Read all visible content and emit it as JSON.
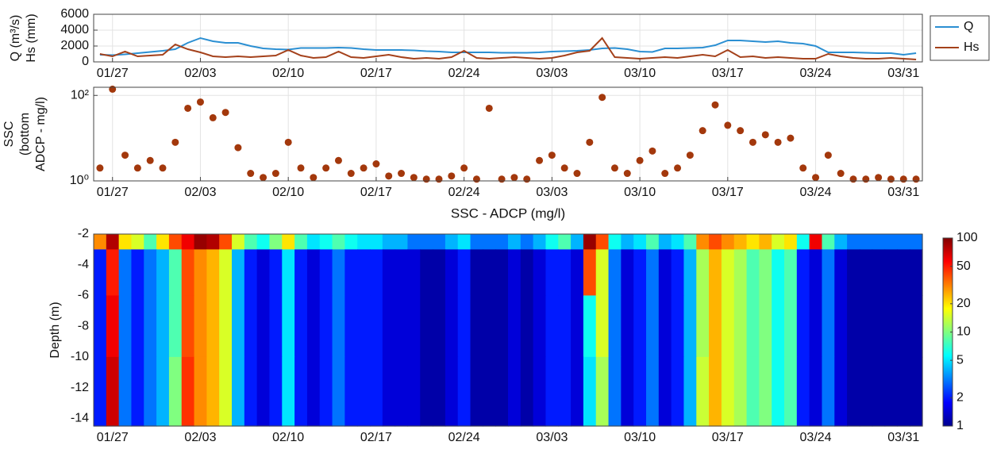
{
  "chart_data": [
    {
      "type": "line",
      "ylabel": [
        "Q (m³/s)",
        "Hs (mm)"
      ],
      "x": [
        "01/26",
        "01/27",
        "01/28",
        "01/29",
        "01/30",
        "01/31",
        "02/01",
        "02/02",
        "02/03",
        "02/04",
        "02/05",
        "02/06",
        "02/07",
        "02/08",
        "02/09",
        "02/10",
        "02/11",
        "02/12",
        "02/13",
        "02/14",
        "02/15",
        "02/16",
        "02/17",
        "02/18",
        "02/19",
        "02/20",
        "02/21",
        "02/22",
        "02/23",
        "02/24",
        "02/25",
        "02/26",
        "02/27",
        "02/28",
        "03/01",
        "03/02",
        "03/03",
        "03/04",
        "03/05",
        "03/06",
        "03/07",
        "03/08",
        "03/09",
        "03/10",
        "03/11",
        "03/12",
        "03/13",
        "03/14",
        "03/15",
        "03/16",
        "03/17",
        "03/18",
        "03/19",
        "03/20",
        "03/21",
        "03/22",
        "03/23",
        "03/24",
        "03/25",
        "03/26",
        "03/27",
        "03/28",
        "03/29",
        "03/30",
        "03/31",
        "04/01"
      ],
      "xticks": [
        "01/27",
        "02/03",
        "02/10",
        "02/17",
        "02/24",
        "03/03",
        "03/10",
        "03/17",
        "03/24",
        "03/31"
      ],
      "ylim": [
        0,
        6000
      ],
      "yticks": [
        0,
        2000,
        4000,
        6000
      ],
      "grid": true,
      "legend": "outside-top-right",
      "series": [
        {
          "name": "Q",
          "color": "#2b8fd2",
          "values": [
            900,
            850,
            950,
            1100,
            1250,
            1400,
            1600,
            2400,
            3000,
            2600,
            2400,
            2400,
            2000,
            1700,
            1600,
            1550,
            1750,
            1750,
            1750,
            1800,
            1750,
            1600,
            1500,
            1500,
            1500,
            1450,
            1350,
            1300,
            1200,
            1200,
            1200,
            1200,
            1150,
            1150,
            1150,
            1200,
            1300,
            1350,
            1400,
            1500,
            1700,
            1750,
            1600,
            1300,
            1250,
            1700,
            1700,
            1750,
            1800,
            2100,
            2700,
            2700,
            2600,
            2500,
            2600,
            2400,
            2300,
            2000,
            1200,
            1200,
            1200,
            1150,
            1100,
            1100,
            900,
            1100
          ]
        },
        {
          "name": "Hs",
          "color": "#a4411b",
          "values": [
            1000,
            700,
            1300,
            700,
            800,
            900,
            2200,
            1600,
            1200,
            700,
            600,
            700,
            600,
            700,
            800,
            1500,
            800,
            500,
            600,
            1300,
            600,
            500,
            700,
            900,
            600,
            400,
            500,
            400,
            600,
            1400,
            500,
            400,
            500,
            600,
            500,
            400,
            500,
            800,
            1200,
            1400,
            3000,
            600,
            500,
            400,
            500,
            600,
            500,
            700,
            900,
            700,
            1500,
            600,
            700,
            500,
            600,
            500,
            400,
            400,
            1000,
            700,
            500,
            400,
            400,
            500,
            400,
            300
          ]
        }
      ]
    },
    {
      "type": "scatter",
      "ylabel": [
        "SSC",
        "(bottom",
        "ADCP - mg/l)"
      ],
      "x": [
        "01/26",
        "01/27",
        "01/28",
        "01/29",
        "01/30",
        "01/31",
        "02/01",
        "02/02",
        "02/03",
        "02/04",
        "02/05",
        "02/06",
        "02/07",
        "02/08",
        "02/09",
        "02/10",
        "02/11",
        "02/12",
        "02/13",
        "02/14",
        "02/15",
        "02/16",
        "02/17",
        "02/18",
        "02/19",
        "02/20",
        "02/21",
        "02/22",
        "02/23",
        "02/24",
        "02/25",
        "02/26",
        "02/27",
        "02/28",
        "03/01",
        "03/02",
        "03/03",
        "03/04",
        "03/05",
        "03/06",
        "03/07",
        "03/08",
        "03/09",
        "03/10",
        "03/11",
        "03/12",
        "03/13",
        "03/14",
        "03/15",
        "03/16",
        "03/17",
        "03/18",
        "03/19",
        "03/20",
        "03/21",
        "03/22",
        "03/23",
        "03/24",
        "03/25",
        "03/26",
        "03/27",
        "03/28",
        "03/29",
        "03/30",
        "03/31",
        "04/01"
      ],
      "xticks": [
        "01/27",
        "02/03",
        "02/10",
        "02/17",
        "02/24",
        "03/03",
        "03/10",
        "03/17",
        "03/24",
        "03/31"
      ],
      "ylim": [
        1,
        155
      ],
      "yscale": "log",
      "yticks": [
        {
          "value": 1,
          "label": "10⁰"
        },
        {
          "value": 100,
          "label": "10²"
        }
      ],
      "grid": true,
      "color": "#a3380c",
      "values": [
        2,
        140,
        4,
        2,
        3,
        2,
        8,
        50,
        70,
        30,
        40,
        6,
        1.5,
        1.2,
        1.5,
        8,
        2,
        1.2,
        2,
        3,
        1.5,
        2,
        2.5,
        1.3,
        1.5,
        1.2,
        1.1,
        1.1,
        1.3,
        2,
        1.1,
        50,
        1.1,
        1.2,
        1.1,
        3,
        4,
        2,
        1.5,
        8,
        90,
        2,
        1.5,
        3,
        5,
        1.5,
        2,
        4,
        15,
        60,
        20,
        15,
        8,
        12,
        8,
        10,
        2,
        1.2,
        4,
        1.5,
        1.1,
        1.1,
        1.2,
        1.1,
        1.1,
        1.1
      ]
    },
    {
      "type": "heatmap",
      "title": "SSC - ADCP (mg/l)",
      "ylabel": [
        "Depth  (m)"
      ],
      "x": [
        "01/26",
        "01/27",
        "01/28",
        "01/29",
        "01/30",
        "01/31",
        "02/01",
        "02/02",
        "02/03",
        "02/04",
        "02/05",
        "02/06",
        "02/07",
        "02/08",
        "02/09",
        "02/10",
        "02/11",
        "02/12",
        "02/13",
        "02/14",
        "02/15",
        "02/16",
        "02/17",
        "02/18",
        "02/19",
        "02/20",
        "02/21",
        "02/22",
        "02/23",
        "02/24",
        "02/25",
        "02/26",
        "02/27",
        "02/28",
        "03/01",
        "03/02",
        "03/03",
        "03/04",
        "03/05",
        "03/06",
        "03/07",
        "03/08",
        "03/09",
        "03/10",
        "03/11",
        "03/12",
        "03/13",
        "03/14",
        "03/15",
        "03/16",
        "03/17",
        "03/18",
        "03/19",
        "03/20",
        "03/21",
        "03/22",
        "03/23",
        "03/24",
        "03/25",
        "03/26",
        "03/27",
        "03/28",
        "03/29",
        "03/30",
        "03/31",
        "04/01"
      ],
      "xticks": [
        "01/27",
        "02/03",
        "02/10",
        "02/17",
        "02/24",
        "03/03",
        "03/10",
        "03/17",
        "03/24",
        "03/31"
      ],
      "ylim": [
        -14.5,
        -2
      ],
      "yticks": [
        -2,
        -4,
        -6,
        -8,
        -10,
        -12,
        -14
      ],
      "y_bins": [
        -2,
        -3,
        -6,
        -10,
        -14.5
      ],
      "zlim": [
        1,
        100
      ],
      "zscale": "log",
      "zticks": [
        1,
        2,
        5,
        10,
        20,
        50,
        100
      ],
      "colormap": "jet",
      "z": [
        [
          30,
          80,
          20,
          15,
          8,
          20,
          40,
          60,
          90,
          80,
          40,
          15,
          8,
          6,
          10,
          20,
          8,
          5,
          6,
          8,
          6,
          5,
          5,
          4,
          4,
          3,
          3,
          3,
          4,
          5,
          3,
          3,
          3,
          4,
          3,
          4,
          6,
          8,
          4,
          90,
          40,
          6,
          4,
          5,
          8,
          4,
          5,
          8,
          30,
          40,
          30,
          25,
          20,
          25,
          15,
          20,
          6,
          60,
          8,
          4,
          3,
          3,
          3,
          3,
          3,
          3
        ],
        [
          2,
          50,
          3,
          2,
          3,
          4,
          8,
          40,
          30,
          25,
          15,
          4,
          2,
          1.5,
          2,
          5,
          2,
          1.5,
          2,
          3,
          2,
          2,
          2,
          1.5,
          1.5,
          1.5,
          1.2,
          1.2,
          1.5,
          2,
          1.2,
          1.2,
          1.2,
          1.5,
          1.2,
          1.5,
          2,
          2,
          1.5,
          40,
          15,
          3,
          1.5,
          2,
          3,
          1.5,
          2,
          4,
          12,
          25,
          15,
          12,
          8,
          10,
          6,
          8,
          2,
          1.5,
          3,
          1.5,
          1.2,
          1.2,
          1.2,
          1.2,
          1.2,
          1.2
        ],
        [
          2,
          60,
          3,
          2,
          3,
          4,
          8,
          40,
          30,
          25,
          15,
          4,
          2,
          1.5,
          2,
          5,
          2,
          1.5,
          2,
          3,
          2,
          2,
          2,
          1.5,
          1.5,
          1.5,
          1.2,
          1.2,
          1.5,
          2,
          1.2,
          1.2,
          1.2,
          1.5,
          1.2,
          1.5,
          2,
          2,
          1.5,
          6,
          15,
          3,
          1.5,
          2,
          3,
          1.5,
          2,
          4,
          12,
          25,
          15,
          12,
          8,
          10,
          6,
          8,
          2,
          1.5,
          3,
          1.5,
          1.2,
          1.2,
          1.2,
          1.2,
          1.2,
          1.2
        ],
        [
          2,
          70,
          3,
          2,
          3,
          4,
          10,
          45,
          30,
          25,
          15,
          4,
          2,
          1.5,
          2,
          5,
          2,
          1.5,
          2,
          3,
          2,
          2,
          2,
          1.5,
          1.5,
          1.5,
          1.2,
          1.2,
          1.5,
          2,
          1.2,
          1.2,
          1.2,
          1.5,
          1.2,
          1.5,
          2,
          2,
          1.5,
          5,
          12,
          3,
          1.5,
          2,
          3,
          1.5,
          2,
          4,
          14,
          25,
          15,
          12,
          8,
          10,
          6,
          8,
          2,
          1.5,
          3,
          1.5,
          1.2,
          1.2,
          1.2,
          1.2,
          1.2,
          1.2
        ]
      ]
    }
  ]
}
